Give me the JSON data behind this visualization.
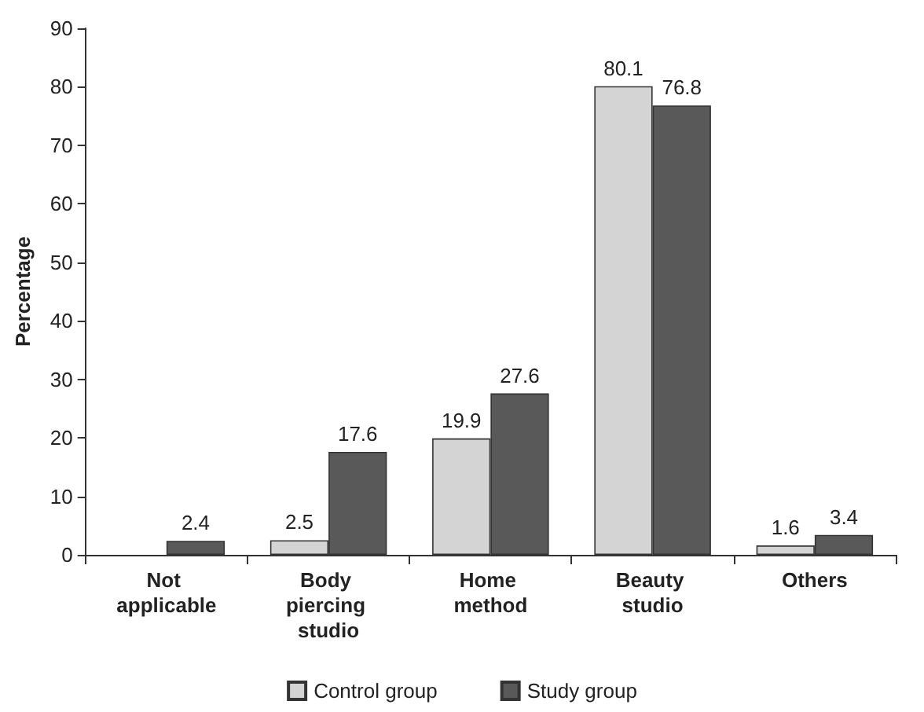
{
  "chart_data": {
    "type": "bar",
    "ylabel": "Percentage",
    "categories": [
      "Not applicable",
      "Body piercing studio",
      "Home method",
      "Beauty studio",
      "Others"
    ],
    "series": [
      {
        "name": "Control group",
        "color": "#d4d4d4",
        "values": [
          null,
          2.5,
          19.9,
          80.1,
          1.6
        ]
      },
      {
        "name": "Study group",
        "color": "#595959",
        "values": [
          2.4,
          17.6,
          27.6,
          76.8,
          3.4
        ]
      }
    ],
    "ylim": [
      0,
      90
    ],
    "yticks": [
      0,
      10,
      20,
      30,
      40,
      50,
      60,
      70,
      80,
      90
    ],
    "data_labels": true,
    "legend": "bottom",
    "grid": false
  }
}
